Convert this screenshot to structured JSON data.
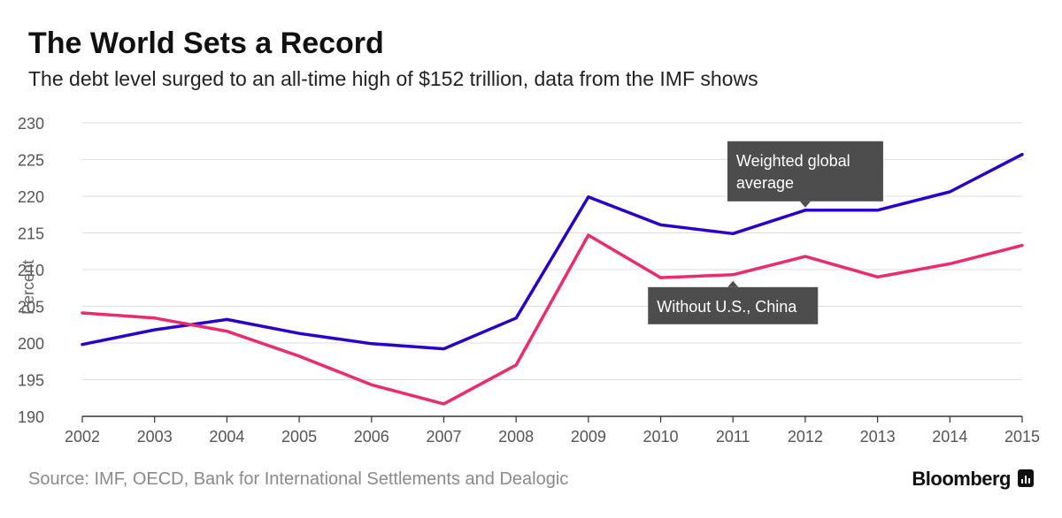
{
  "chart_data": {
    "type": "line",
    "title": "The World Sets a Record",
    "subtitle": "The debt level surged to an all-time high of $152 trillion, data from the IMF shows",
    "xlabel": "",
    "ylabel": "Percent",
    "ylim": [
      190,
      230
    ],
    "yticks": [
      "190",
      "195",
      "200",
      "205",
      "210",
      "215",
      "220",
      "225",
      "230"
    ],
    "categories": [
      "2002",
      "2003",
      "2004",
      "2005",
      "2006",
      "2007",
      "2008",
      "2009",
      "2010",
      "2011",
      "2012",
      "2013",
      "2014",
      "2015"
    ],
    "grid": true,
    "series": [
      {
        "name": "Weighted global average",
        "color": "#2a00cc",
        "values": [
          199.8,
          201.8,
          203.2,
          201.3,
          199.9,
          199.2,
          203.4,
          219.9,
          216.1,
          214.9,
          218.1,
          218.1,
          220.6,
          225.7
        ]
      },
      {
        "name": "Without U.S., China",
        "color": "#ee2a6a",
        "values": [
          204.1,
          203.4,
          201.6,
          198.2,
          194.3,
          191.7,
          197.0,
          214.7,
          208.9,
          209.3,
          211.8,
          209.0,
          210.8,
          213.3
        ]
      }
    ],
    "annotations": [
      {
        "lines": [
          "Weighted global",
          "average"
        ],
        "series": 0,
        "category": "2012"
      },
      {
        "lines": [
          "Without U.S., China"
        ],
        "series": 1,
        "category": "2011"
      }
    ]
  },
  "footer": {
    "source": "Source: IMF, OECD, Bank for International Settlements and Dealogic",
    "brand": "Bloomberg"
  },
  "colors": {
    "grid": "#dddddd",
    "axis": "#333333",
    "annotation_bg": "#4d4d4d"
  }
}
